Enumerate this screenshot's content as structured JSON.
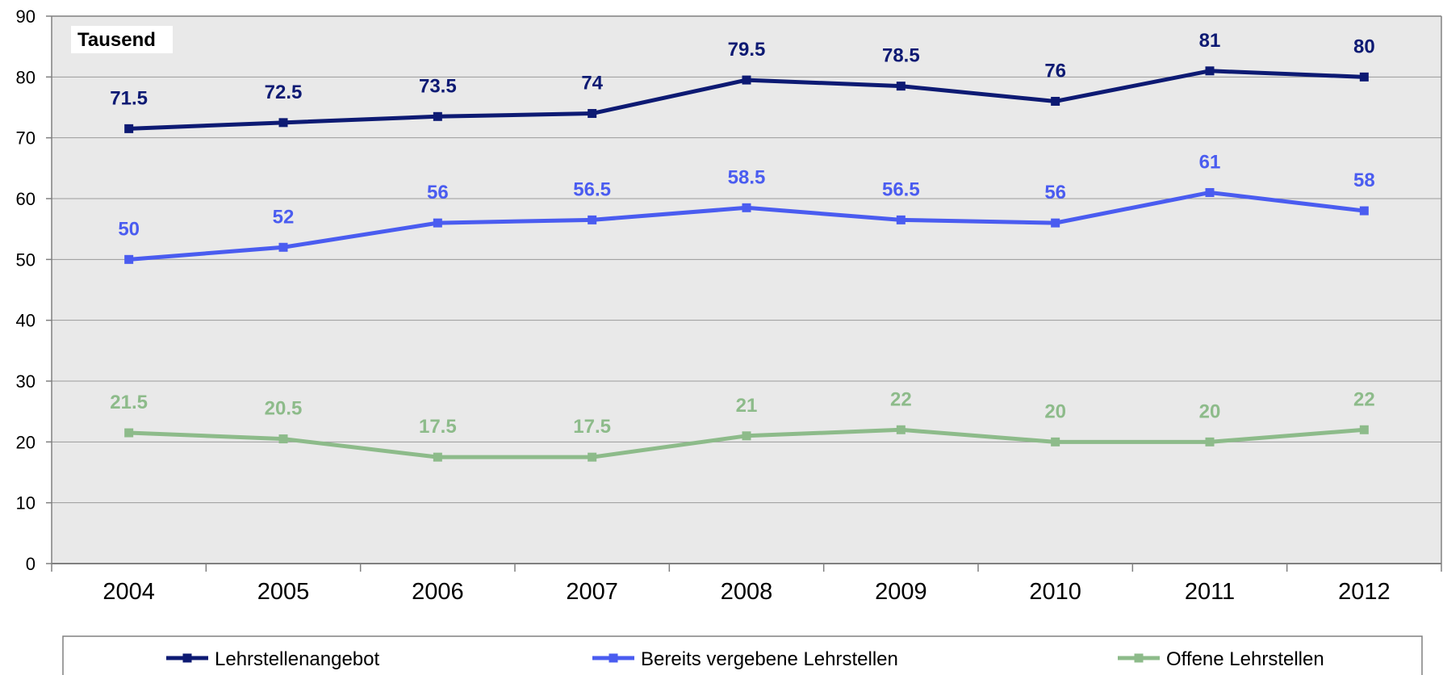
{
  "chart_data": {
    "type": "line",
    "unit_label": "Tausend",
    "categories": [
      "2004",
      "2005",
      "2006",
      "2007",
      "2008",
      "2009",
      "2010",
      "2011",
      "2012"
    ],
    "ylim": [
      0,
      90
    ],
    "yticks": [
      0,
      10,
      20,
      30,
      40,
      50,
      60,
      70,
      80,
      90
    ],
    "grid": true,
    "legend_position": "bottom",
    "series": [
      {
        "name": "Lehrstellenangebot",
        "color": "#0d1a73",
        "values": [
          71.5,
          72.5,
          73.5,
          74,
          79.5,
          78.5,
          76,
          81,
          80
        ],
        "labels": [
          "71.5",
          "72.5",
          "73.5",
          "74",
          "79.5",
          "78.5",
          "76",
          "81",
          "80"
        ]
      },
      {
        "name": "Bereits vergebene Lehrstellen",
        "color": "#4a5cf0",
        "values": [
          50,
          52,
          56,
          56.5,
          58.5,
          56.5,
          56,
          61,
          58
        ],
        "labels": [
          "50",
          "52",
          "56",
          "56.5",
          "58.5",
          "56.5",
          "56",
          "61",
          "58"
        ]
      },
      {
        "name": "Offene Lehrstellen",
        "color": "#8dbb8a",
        "values": [
          21.5,
          20.5,
          17.5,
          17.5,
          21,
          22,
          20,
          20,
          22
        ],
        "labels": [
          "21.5",
          "20.5",
          "17.5",
          "17.5",
          "21",
          "22",
          "20",
          "20",
          "22"
        ]
      }
    ]
  }
}
